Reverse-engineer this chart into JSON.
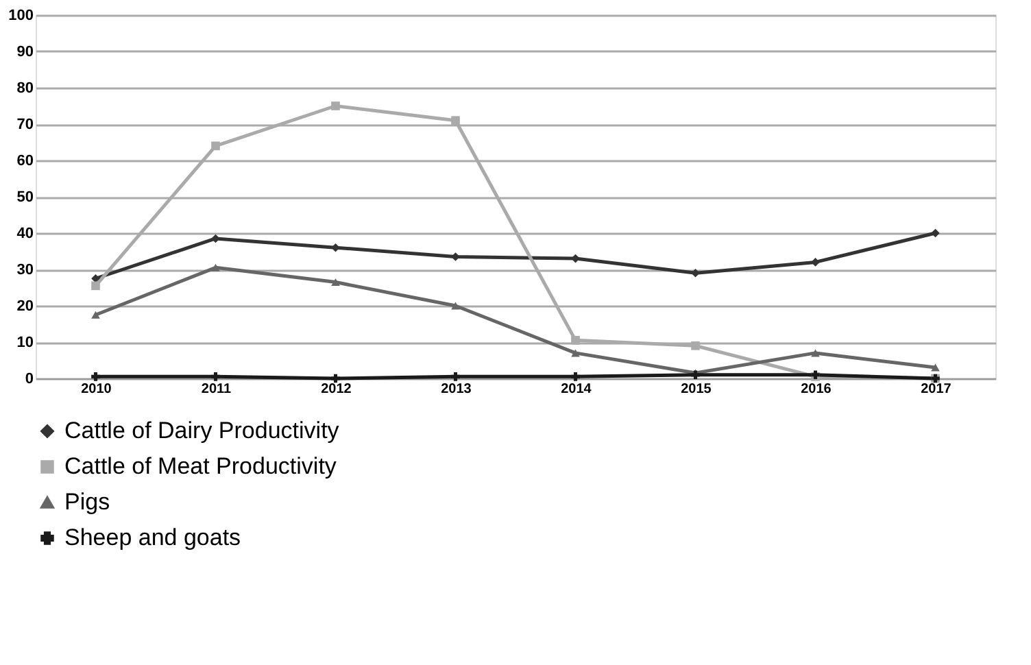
{
  "chart_data": {
    "type": "line",
    "categories": [
      "2010",
      "2011",
      "2012",
      "2013",
      "2014",
      "2015",
      "2016",
      "2017"
    ],
    "series": [
      {
        "name": "Cattle of Dairy Productivity",
        "color": "#333333",
        "marker": "diamond",
        "values": [
          27.5,
          38.5,
          36,
          33.5,
          33,
          29,
          32,
          40
        ]
      },
      {
        "name": "Cattle of Meat Productivity",
        "color": "#aaaaaa",
        "marker": "square",
        "values": [
          25.5,
          64,
          75,
          71,
          10.5,
          9,
          0.5,
          0
        ]
      },
      {
        "name": "Pigs",
        "color": "#666666",
        "marker": "triangle",
        "values": [
          17.5,
          30.5,
          26.5,
          20,
          7,
          1.5,
          7,
          3
        ]
      },
      {
        "name": "Sheep and goats",
        "color": "#1a1a1a",
        "marker": "cross",
        "values": [
          0.5,
          0.5,
          0,
          0.5,
          0.5,
          1,
          1,
          0
        ]
      }
    ],
    "ylim": [
      0,
      100
    ],
    "yticks": [
      0,
      10,
      20,
      30,
      40,
      50,
      60,
      70,
      80,
      90,
      100
    ],
    "grid": "y",
    "legend": "bottom",
    "line_style": "solid"
  }
}
